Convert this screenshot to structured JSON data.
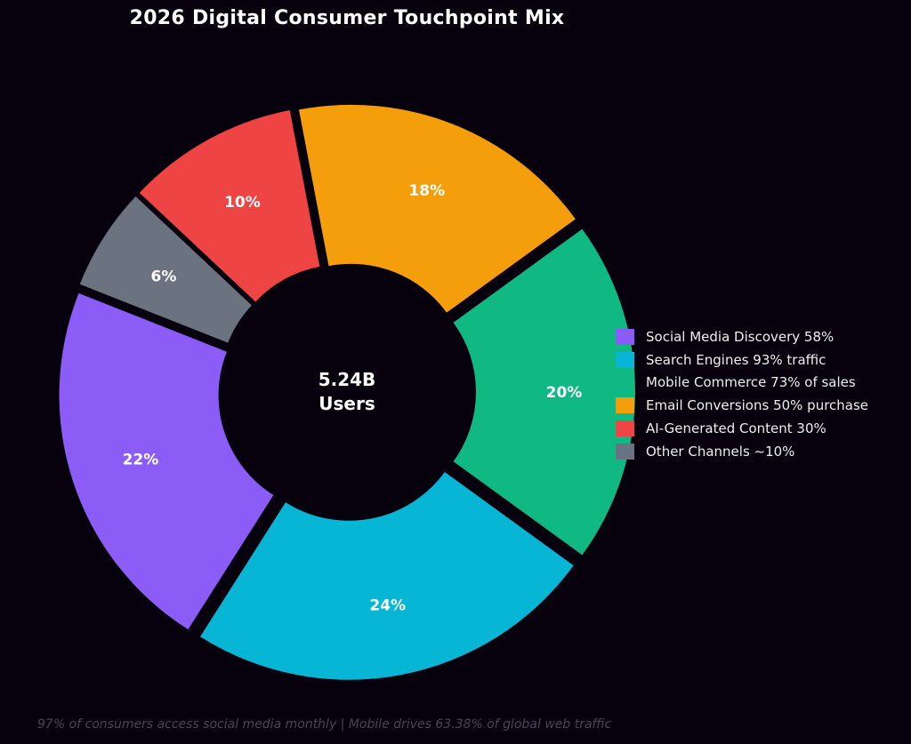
{
  "chart_data": {
    "type": "pie",
    "title": "2026 Digital Consumer Touchpoint Mix",
    "center_label": [
      "5.24B",
      "Users"
    ],
    "slices": [
      {
        "label": "Social Media Discovery 58%",
        "value": 22,
        "value_label": "22%",
        "color": "#8b5cf6"
      },
      {
        "label": "Search Engines 93% traffic",
        "value": 24,
        "value_label": "24%",
        "color": "#06b6d4"
      },
      {
        "label": "Mobile Commerce 73% of sales",
        "value": 20,
        "value_label": "20%",
        "color": "#10b981"
      },
      {
        "label": "Email Conversions 50% purchase",
        "value": 18,
        "value_label": "18%",
        "color": "#f59e0b"
      },
      {
        "label": "AI-Generated Content 30%",
        "value": 10,
        "value_label": "10%",
        "color": "#ef4444"
      },
      {
        "label": "Other Channels ~10%",
        "value": 6,
        "value_label": "6%",
        "color": "#6b7280"
      }
    ],
    "legend_position": "right",
    "footnote": "97% of consumers access social media monthly | Mobile drives 63.38% of global web traffic"
  }
}
